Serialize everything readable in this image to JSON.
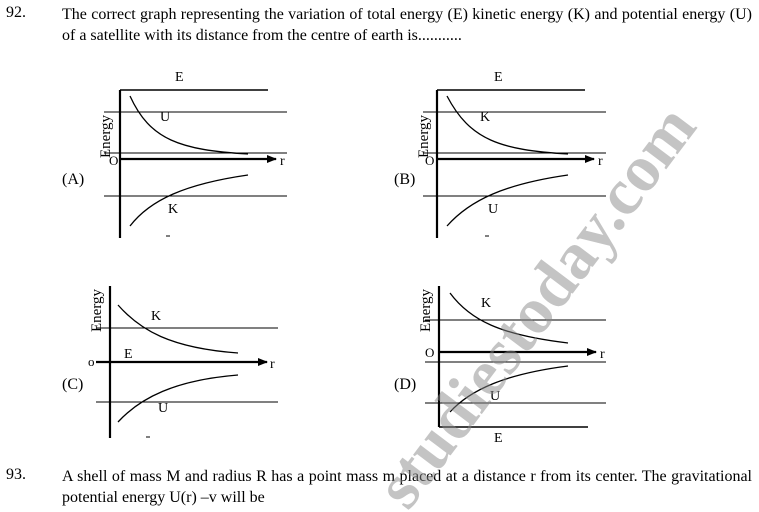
{
  "questions": [
    {
      "number": "92.",
      "text": "The correct graph representing the variation of total energy (E) kinetic energy (K) and potential energy (U) of a satellite with its distance from the centre of earth is..........."
    },
    {
      "number": "93.",
      "text": "A shell of mass M and radius R has a point mass m placed at a distance r from its center. The gravitational potential energy U(r) –v will be"
    }
  ],
  "graphs": [
    {
      "option": "(A)",
      "y_axis_label": "Energy",
      "origin_label": "O",
      "x_axis_label": "r",
      "upper_curve": "U",
      "lower_curve": "K",
      "line_label": "E"
    },
    {
      "option": "(B)",
      "y_axis_label": "Energy",
      "origin_label": "O",
      "x_axis_label": "r",
      "upper_curve": "K",
      "lower_curve": "U",
      "line_label": "E"
    },
    {
      "option": "(C)",
      "y_axis_label": "Energy",
      "origin_label": "o",
      "x_axis_label": "r",
      "upper_curve": "K",
      "lower_curve": "U",
      "line_label": "E"
    },
    {
      "option": "(D)",
      "y_axis_label": "Energy",
      "origin_label": "O",
      "x_axis_label": "r",
      "upper_curve": "K",
      "lower_curve": "U",
      "line_label": "E"
    }
  ],
  "watermark": "studiestoday.com"
}
